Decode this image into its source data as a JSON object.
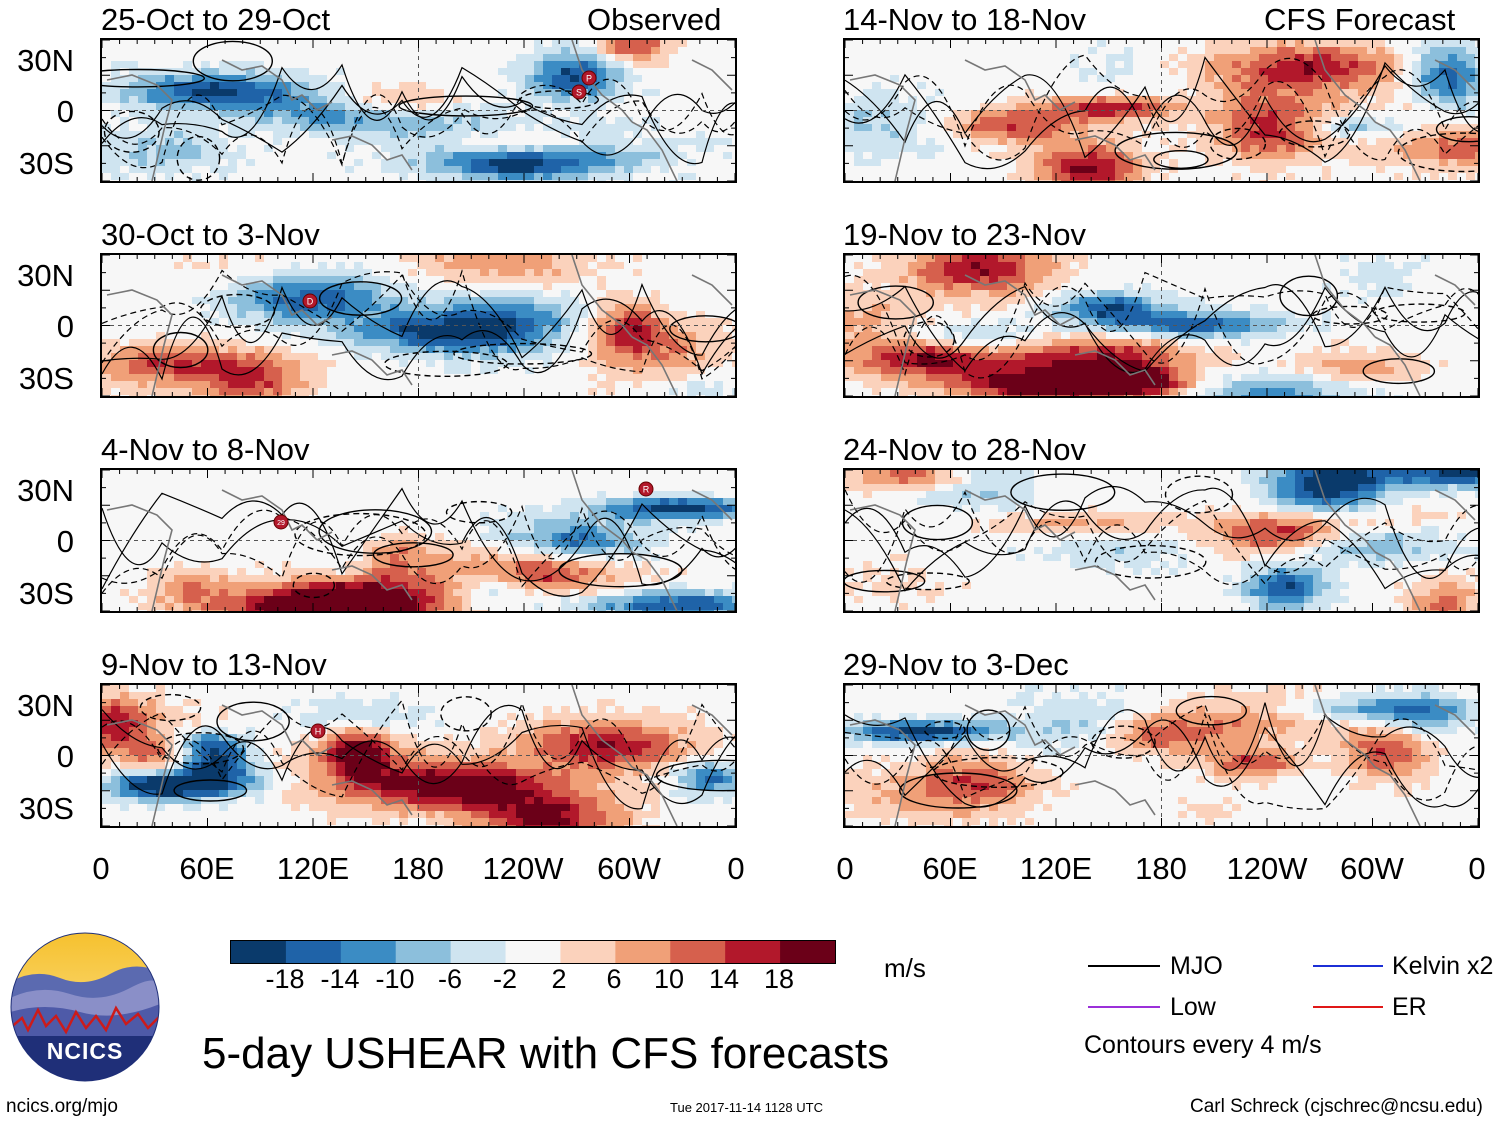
{
  "header": {
    "left_tag": "Observed",
    "right_tag": "CFS Forecast"
  },
  "axes": {
    "y_ticks": [
      "30N",
      "0",
      "30S"
    ],
    "x_ticks": [
      "0",
      "60E",
      "120E",
      "180",
      "120W",
      "60W",
      "0"
    ]
  },
  "panels": {
    "left": [
      {
        "period": "25-Oct to 29-Oct"
      },
      {
        "period": "30-Oct to 3-Nov"
      },
      {
        "period": "4-Nov to 8-Nov"
      },
      {
        "period": "9-Nov to 13-Nov"
      }
    ],
    "right": [
      {
        "period": "14-Nov to 18-Nov"
      },
      {
        "period": "19-Nov to 23-Nov"
      },
      {
        "period": "24-Nov to 28-Nov"
      },
      {
        "period": "29-Nov to 3-Dec"
      }
    ]
  },
  "storm_markers": [
    "S",
    "P",
    "D",
    "29",
    "R",
    "H"
  ],
  "colorbar": {
    "unit": "m/s",
    "labels": [
      "-18",
      "-14",
      "-10",
      "-6",
      "-2",
      "2",
      "6",
      "10",
      "14",
      "18"
    ],
    "colors": [
      "#0a3a6b",
      "#1f63a8",
      "#3b8cc4",
      "#8cbfdc",
      "#cfe4f0",
      "#f7f7f7",
      "#fbd2bc",
      "#f0a078",
      "#d6604d",
      "#b2182b",
      "#6b0018"
    ]
  },
  "legend": {
    "items": [
      {
        "label": "MJO",
        "color": "#000000"
      },
      {
        "label": "Kelvin x2",
        "color": "#1c2fd6"
      },
      {
        "label": "Low",
        "color": "#9b30d9"
      },
      {
        "label": "ER",
        "color": "#e01818"
      }
    ],
    "note": "Contours every 4 m/s"
  },
  "title": "5-day USHEAR with CFS forecasts",
  "footer": {
    "url": "ncics.org/mjo",
    "timestamp": "Tue 2017-11-14 1128 UTC",
    "credit": "Carl Schreck (cjschrec@ncsu.edu)"
  },
  "logo": {
    "text": "NCICS"
  }
}
